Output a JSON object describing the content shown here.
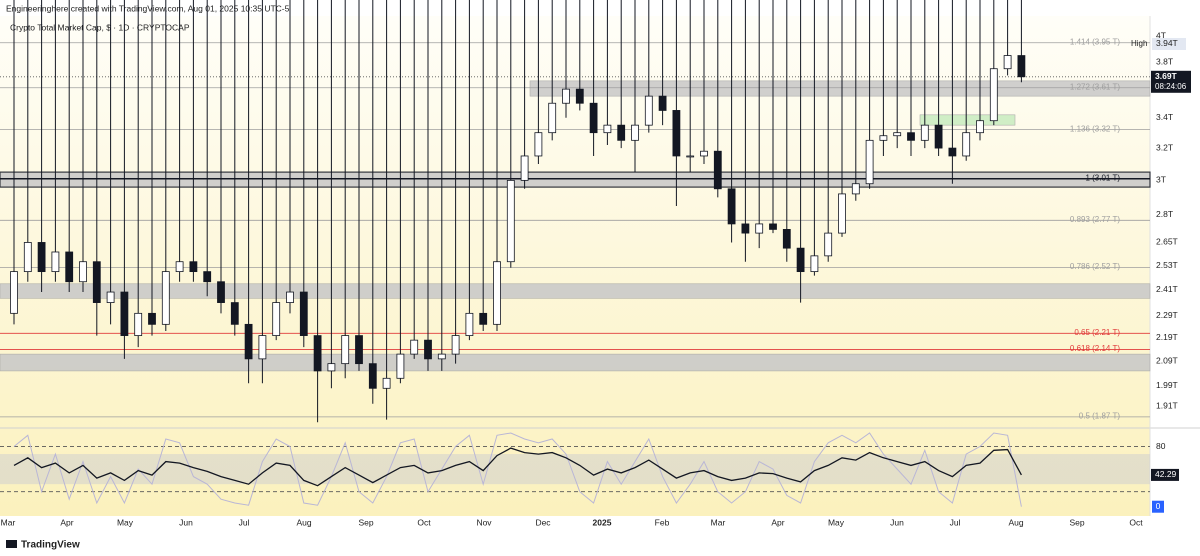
{
  "header": {
    "credit": "Engineeringhere created with TradingView.com, Aug 01, 2025 10:35 UTC-5"
  },
  "footer": {
    "brand": "TradingView"
  },
  "chart_data": [
    {
      "type": "candlestick",
      "title": "Crypto Total Market Cap, $ · 1D · CRYPTOCAP",
      "x_labels": [
        "Mar",
        "Apr",
        "May",
        "Jun",
        "Jul",
        "Aug",
        "Sep",
        "Oct",
        "Nov",
        "Dec",
        "2025",
        "Feb",
        "Mar",
        "Apr",
        "May",
        "Jun",
        "Jul",
        "Aug",
        "Sep",
        "Oct"
      ],
      "open": [
        2.3,
        2.5,
        2.65,
        2.5,
        2.6,
        2.45,
        2.55,
        2.35,
        2.4,
        2.2,
        2.3,
        2.25,
        2.5,
        2.55,
        2.5,
        2.45,
        2.35,
        2.25,
        2.1,
        2.2,
        2.35,
        2.4,
        2.2,
        2.05,
        2.08,
        2.2,
        2.08,
        1.98,
        2.02,
        2.12,
        2.18,
        2.1,
        2.12,
        2.2,
        2.3,
        2.25,
        2.55,
        3.0,
        3.15,
        3.3,
        3.5,
        3.6,
        3.5,
        3.3,
        3.35,
        3.25,
        3.35,
        3.55,
        3.45,
        3.15,
        3.15,
        3.18,
        2.95,
        2.75,
        2.7,
        2.75,
        2.72,
        2.62,
        2.5,
        2.58,
        2.7,
        2.92,
        2.98,
        3.25,
        3.28,
        3.3,
        3.25,
        3.35,
        3.2,
        3.15,
        3.3,
        3.38,
        3.75,
        3.85
      ],
      "high": {
        "name": "High",
        "value": 3.94,
        "label": "3.94T"
      },
      "low": [
        2.25,
        2.45,
        2.4,
        2.45,
        2.4,
        2.4,
        2.2,
        2.25,
        2.1,
        2.15,
        2.2,
        2.22,
        2.45,
        2.45,
        2.38,
        2.3,
        2.2,
        2.0,
        2.0,
        2.18,
        2.3,
        2.15,
        1.85,
        1.98,
        2.02,
        2.05,
        1.92,
        1.86,
        2.0,
        2.1,
        2.05,
        2.05,
        2.08,
        2.18,
        2.22,
        2.22,
        2.52,
        2.95,
        3.1,
        3.25,
        3.4,
        3.45,
        3.15,
        3.22,
        3.2,
        3.05,
        3.3,
        3.35,
        2.85,
        3.05,
        3.1,
        2.9,
        2.65,
        2.55,
        2.62,
        2.7,
        2.55,
        2.35,
        2.48,
        2.55,
        2.68,
        2.88,
        2.95,
        3.15,
        3.2,
        3.15,
        3.2,
        3.15,
        2.98,
        3.12,
        3.25,
        3.35,
        3.7,
        3.65
      ],
      "close": [
        2.5,
        2.65,
        2.5,
        2.6,
        2.45,
        2.55,
        2.35,
        2.4,
        2.2,
        2.3,
        2.25,
        2.5,
        2.55,
        2.5,
        2.45,
        2.35,
        2.25,
        2.1,
        2.2,
        2.35,
        2.4,
        2.2,
        2.05,
        2.08,
        2.2,
        2.08,
        1.98,
        2.02,
        2.12,
        2.18,
        2.1,
        2.12,
        2.2,
        2.3,
        2.25,
        2.55,
        3.0,
        3.15,
        3.3,
        3.5,
        3.6,
        3.5,
        3.3,
        3.35,
        3.25,
        3.35,
        3.55,
        3.45,
        3.15,
        3.15,
        3.18,
        2.95,
        2.75,
        2.7,
        2.75,
        2.72,
        2.62,
        2.5,
        2.58,
        2.7,
        2.92,
        2.98,
        3.25,
        3.28,
        3.3,
        3.25,
        3.35,
        3.2,
        3.15,
        3.3,
        3.38,
        3.75,
        3.85,
        3.69
      ],
      "up_color": "#ffffff",
      "down_color": "#131722",
      "log_scale": true,
      "ylim": [
        1.84,
        4.15
      ],
      "yticks": [
        {
          "value": 4,
          "label": "4T"
        },
        {
          "value": 3.8,
          "label": "3.8T"
        },
        {
          "value": 3.4,
          "label": "3.4T"
        },
        {
          "value": 3.2,
          "label": "3.2T"
        },
        {
          "value": 3,
          "label": "3T"
        },
        {
          "value": 2.8,
          "label": "2.8T"
        },
        {
          "value": 2.65,
          "label": "2.65T"
        },
        {
          "value": 2.53,
          "label": "2.53T"
        },
        {
          "value": 2.41,
          "label": "2.41T"
        },
        {
          "value": 2.29,
          "label": "2.29T"
        },
        {
          "value": 2.19,
          "label": "2.19T"
        },
        {
          "value": 2.09,
          "label": "2.09T"
        },
        {
          "value": 1.99,
          "label": "1.99T"
        },
        {
          "value": 1.91,
          "label": "1.91T"
        }
      ],
      "fib_levels": [
        {
          "value": 3.95,
          "label": "1.414 (3.95 T)",
          "color": "#9e9e9e"
        },
        {
          "value": 3.61,
          "label": "1.272 (3.61 T)",
          "color": "#9e9e9e"
        },
        {
          "value": 3.32,
          "label": "1.136 (3.32 T)",
          "color": "#9e9e9e"
        },
        {
          "value": 3.01,
          "label": "1 (3.01 T)",
          "color": "#131722"
        },
        {
          "value": 2.77,
          "label": "0.893 (2.77 T)",
          "color": "#9e9e9e"
        },
        {
          "value": 2.52,
          "label": "0.786 (2.52 T)",
          "color": "#9e9e9e"
        },
        {
          "value": 2.21,
          "label": "0.65 (2.21 T)",
          "color": "#e03a3a"
        },
        {
          "value": 2.14,
          "label": "0.618 (2.14 T)",
          "color": "#e03a3a"
        },
        {
          "value": 1.87,
          "label": "0.5 (1.87 T)",
          "color": "#9e9e9e"
        }
      ],
      "zones": [
        {
          "low": 3.55,
          "high": 3.66,
          "color": "#c8c8c8"
        },
        {
          "low": 2.96,
          "high": 3.05,
          "color": "#c8c8c8"
        },
        {
          "low": 2.37,
          "high": 2.44,
          "color": "#c8c8c8"
        },
        {
          "low": 2.05,
          "high": 2.12,
          "color": "#c8c8c8"
        },
        {
          "low": 3.35,
          "high": 3.42,
          "color": "#c8ecc0"
        }
      ],
      "last_price": {
        "value": 3.69,
        "label": "3.69T"
      },
      "countdown": "08:24:06"
    },
    {
      "type": "line",
      "series": [
        {
          "color": "#131722",
          "values": [
            55,
            65,
            52,
            58,
            45,
            55,
            38,
            45,
            35,
            48,
            42,
            60,
            58,
            52,
            47,
            40,
            35,
            30,
            45,
            58,
            55,
            35,
            28,
            40,
            52,
            42,
            32,
            42,
            52,
            55,
            45,
            48,
            55,
            60,
            48,
            68,
            78,
            72,
            70,
            72,
            65,
            55,
            42,
            50,
            45,
            52,
            62,
            50,
            38,
            45,
            48,
            40,
            35,
            38,
            45,
            44,
            38,
            33,
            48,
            55,
            65,
            62,
            72,
            65,
            60,
            55,
            60,
            48,
            40,
            55,
            58,
            75,
            76,
            42.29
          ]
        },
        {
          "color": "#b9b6d6",
          "values": [
            80,
            95,
            20,
            70,
            10,
            60,
            5,
            40,
            5,
            50,
            30,
            90,
            85,
            40,
            30,
            10,
            5,
            2,
            60,
            90,
            80,
            5,
            2,
            40,
            85,
            20,
            5,
            40,
            85,
            90,
            20,
            50,
            80,
            95,
            30,
            95,
            98,
            90,
            85,
            90,
            70,
            20,
            5,
            60,
            30,
            60,
            90,
            40,
            5,
            30,
            60,
            20,
            5,
            20,
            60,
            50,
            15,
            5,
            60,
            85,
            95,
            85,
            98,
            70,
            50,
            30,
            75,
            20,
            5,
            70,
            80,
            98,
            95,
            0
          ]
        }
      ],
      "ylim": [
        -15,
        102
      ],
      "yticks": [
        80
      ],
      "levels": [
        80,
        20
      ],
      "band": [
        30,
        70
      ]
    }
  ]
}
